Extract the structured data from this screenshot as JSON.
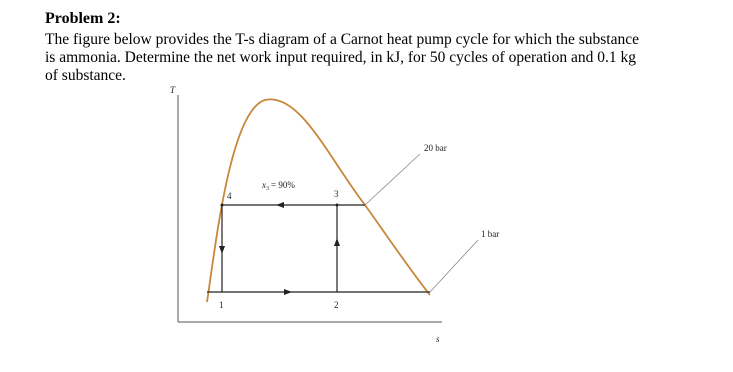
{
  "header": {
    "title": "Problem 2:"
  },
  "body": {
    "lines": [
      "The figure below provides the T-s diagram of a Carnot heat pump cycle for which the substance",
      "is ammonia. Determine the net work input required, in kJ, for 50 cycles of operation and 0.1 kg",
      "of substance."
    ]
  },
  "diagram": {
    "y_axis": "T",
    "x_axis": "s",
    "states": [
      "4",
      "3",
      "1",
      "2"
    ],
    "quality": {
      "symbol": "x",
      "subscript": "3",
      "value": "= 90%"
    },
    "pressures": [
      "20 bar",
      "1 bar"
    ]
  }
}
